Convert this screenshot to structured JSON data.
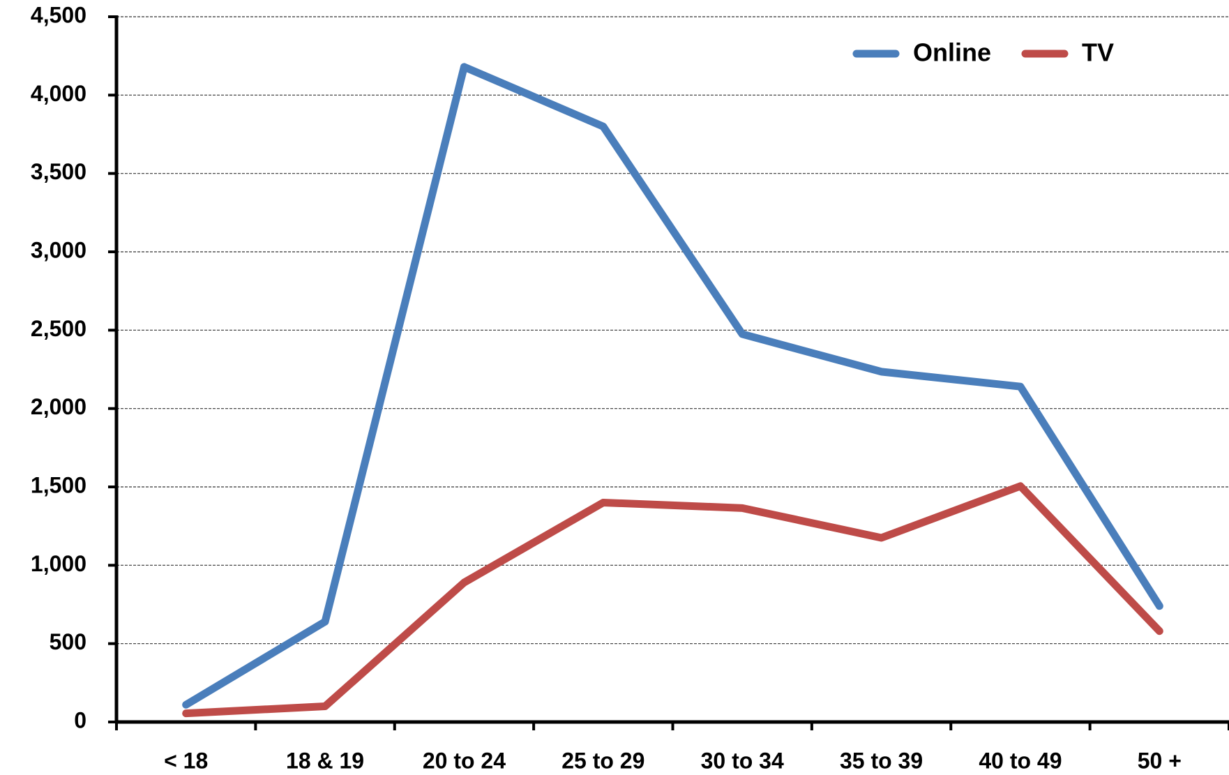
{
  "chart_data": {
    "type": "line",
    "categories": [
      "< 18",
      "18 & 19",
      "20 to 24",
      "25 to 29",
      "30 to 34",
      "35 to 39",
      "40 to 49",
      "50 +"
    ],
    "series": [
      {
        "name": "Online",
        "color": "#4a7ebb",
        "values": [
          110,
          640,
          4180,
          3800,
          2475,
          2235,
          2140,
          740
        ]
      },
      {
        "name": "TV",
        "color": "#be4b48",
        "values": [
          55,
          100,
          890,
          1400,
          1365,
          1175,
          1505,
          580
        ]
      }
    ],
    "ylim": [
      0,
      4500
    ],
    "yticks": [
      0,
      500,
      {
        "value": 1000,
        "label": "1,000"
      },
      {
        "value": 1500,
        "label": "1,500"
      },
      {
        "value": 2000,
        "label": "2,000"
      },
      {
        "value": 2500,
        "label": "2,500"
      },
      {
        "value": 3000,
        "label": "3,000"
      },
      {
        "value": 3500,
        "label": "3,500"
      },
      {
        "value": 4000,
        "label": "4,000"
      },
      {
        "value": 4500,
        "label": "4,500"
      }
    ],
    "grid": true,
    "legend": "top-right"
  }
}
